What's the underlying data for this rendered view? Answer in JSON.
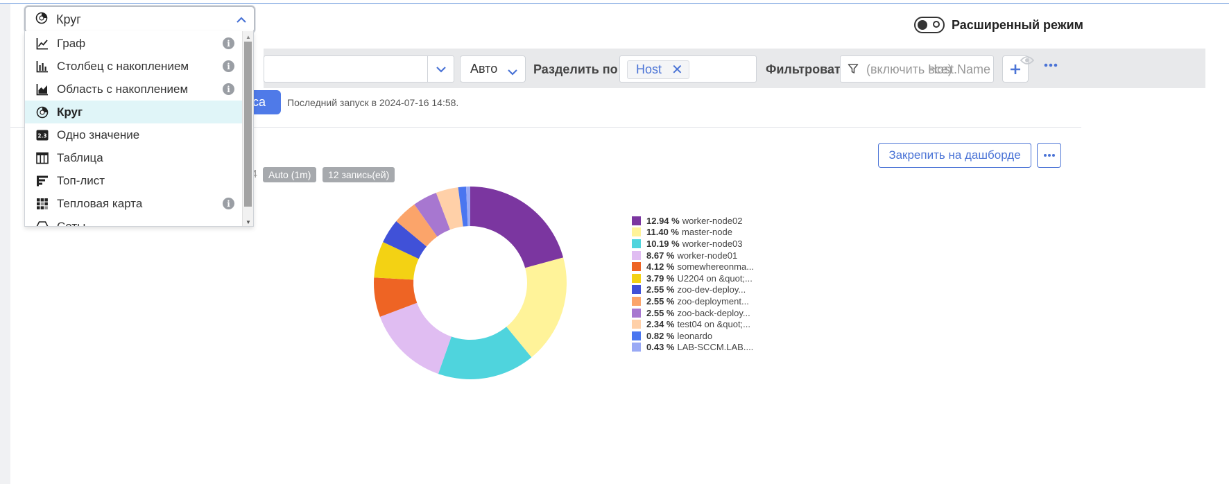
{
  "header": {
    "advanced_mode_label": "Расширенный режим"
  },
  "toolbar": {
    "interval_value": "Авто",
    "split_label": "Разделить по",
    "split_chip": "Host",
    "filter_label": "Фильтровать",
    "filter_placeholder_part1": "(включить все)",
    "filter_placeholder_part2": "Host.Name"
  },
  "run": {
    "button_label_partial": "оса",
    "last_run_text": "Последний запуск в 2024-07-16 14:58."
  },
  "panel": {
    "pin_button_label": "Закрепить на дашборде",
    "badge_partial": "4",
    "badge_interval": "Auto (1m)",
    "badge_records": "12 запись(ей)"
  },
  "dropdown": {
    "selected_label": "Круг",
    "items": [
      {
        "label": "Граф",
        "icon": "line-chart-icon",
        "info": true
      },
      {
        "label": "Столбец с накоплением",
        "icon": "stacked-bar-icon",
        "info": true
      },
      {
        "label": "Область с накоплением",
        "icon": "stacked-area-icon",
        "info": true
      },
      {
        "label": "Круг",
        "icon": "pie-chart-icon",
        "info": false,
        "selected": true
      },
      {
        "label": "Одно значение",
        "icon": "single-value-icon",
        "info": false
      },
      {
        "label": "Таблица",
        "icon": "table-icon",
        "info": false
      },
      {
        "label": "Топ-лист",
        "icon": "toplist-icon",
        "info": false
      },
      {
        "label": "Тепловая карта",
        "icon": "heatmap-icon",
        "info": true
      },
      {
        "label": "Соты",
        "icon": "hexagon-icon",
        "info": false
      }
    ]
  },
  "chart_data": {
    "type": "pie",
    "donut": true,
    "legend_position": "right",
    "slices": [
      {
        "label": "worker-node02",
        "value": 12.94,
        "color": "#7b36a0"
      },
      {
        "label": "master-node",
        "value": 11.4,
        "color": "#fff399"
      },
      {
        "label": "worker-node03",
        "value": 10.19,
        "color": "#4fd4dd"
      },
      {
        "label": "worker-node01",
        "value": 8.67,
        "color": "#e0bdf2"
      },
      {
        "label": "somewhereonma...",
        "value": 4.12,
        "color": "#ee6424"
      },
      {
        "label": "U2204 on &quot;...",
        "value": 3.79,
        "color": "#f3d214"
      },
      {
        "label": "zoo-dev-deploy...",
        "value": 2.55,
        "color": "#4051d8"
      },
      {
        "label": "zoo-deployment...",
        "value": 2.55,
        "color": "#fba46a"
      },
      {
        "label": "zoo-back-deploy...",
        "value": 2.55,
        "color": "#a777d0"
      },
      {
        "label": "test04 on &quot;...",
        "value": 2.34,
        "color": "#ffd0a8"
      },
      {
        "label": "leonardo",
        "value": 0.82,
        "color": "#4a76f0"
      },
      {
        "label": "LAB-SCCM.LAB....",
        "value": 0.43,
        "color": "#99a9f5"
      }
    ]
  }
}
